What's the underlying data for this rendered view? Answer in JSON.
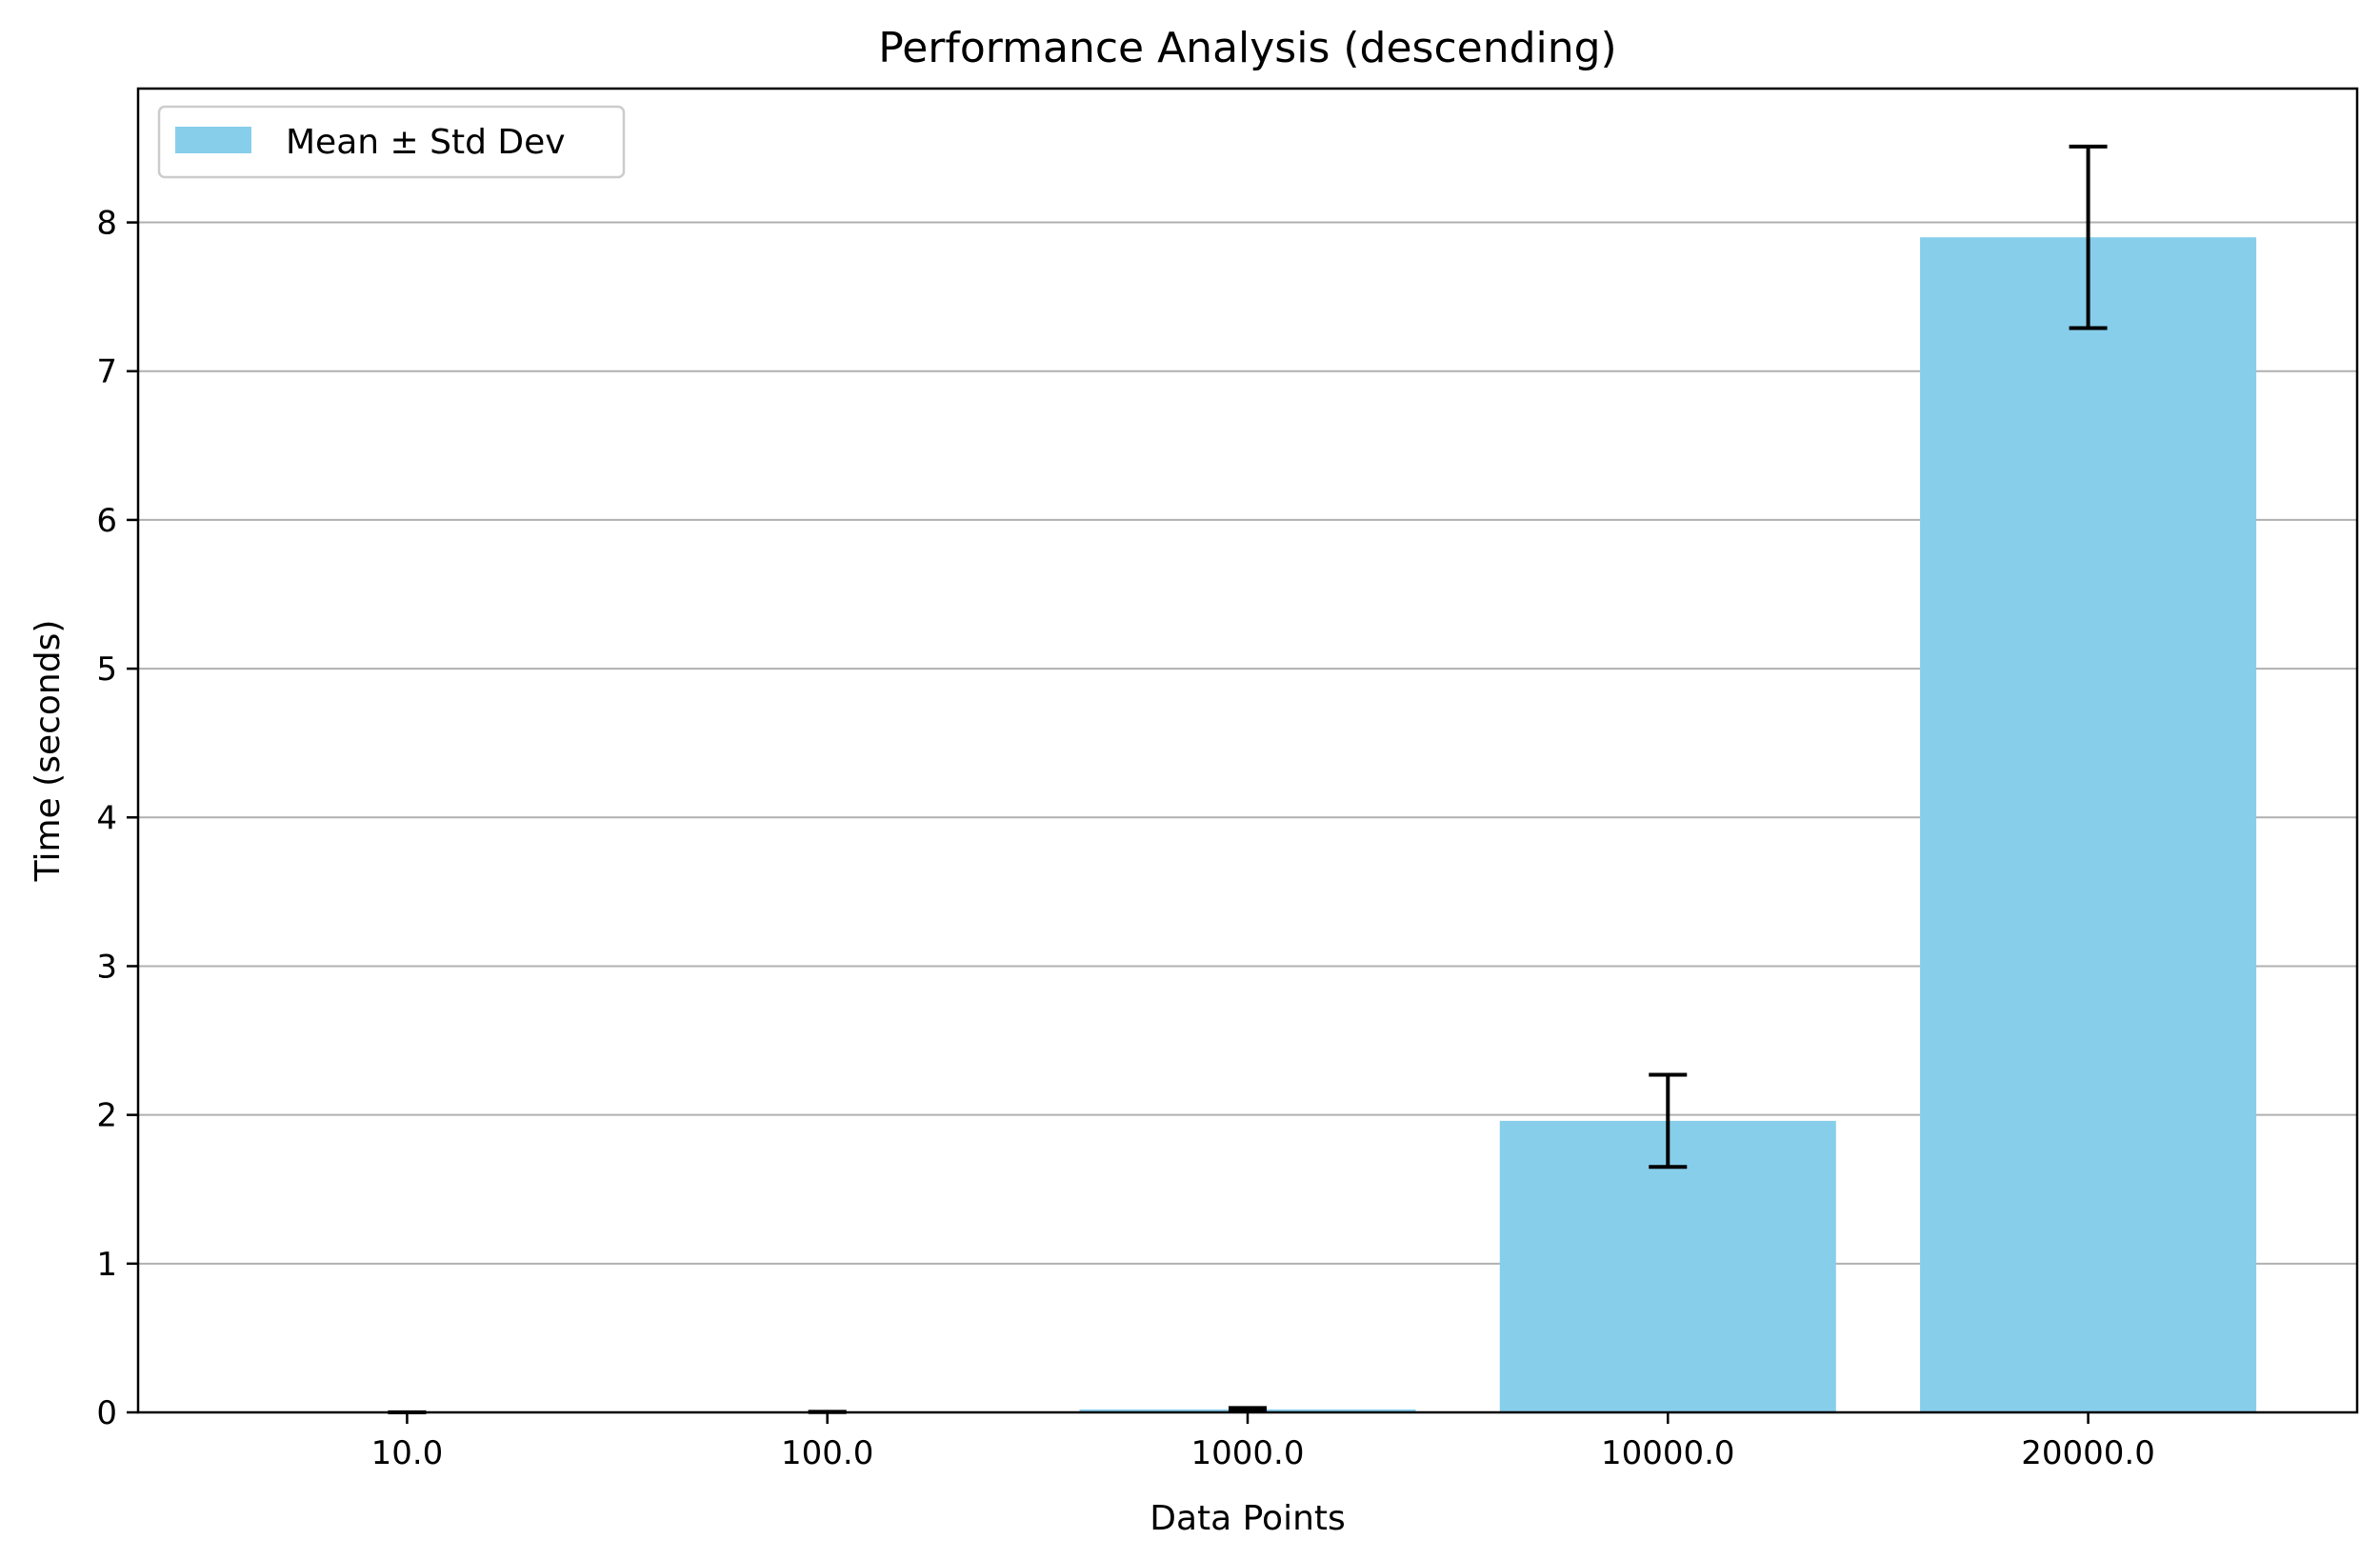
{
  "chart_data": {
    "type": "bar",
    "title": "Performance Analysis (descending)",
    "xlabel": "Data Points",
    "ylabel": "Time (seconds)",
    "categories": [
      "10.0",
      "100.0",
      "1000.0",
      "10000.0",
      "20000.0"
    ],
    "series": [
      {
        "name": "Mean ± Std Dev",
        "values": [
          0.0005,
          0.003,
          0.02,
          1.96,
          7.9
        ],
        "errors": [
          0.0002,
          0.001,
          0.01,
          0.31,
          0.61
        ],
        "color": "#87CEEB"
      }
    ],
    "ylim": [
      0,
      8.9
    ],
    "yticks": [
      0,
      1,
      2,
      3,
      4,
      5,
      6,
      7,
      8
    ],
    "grid": "y",
    "legend_position": "top-left",
    "error_bar_color": "#000000",
    "grid_color": "#b0b0b0"
  }
}
